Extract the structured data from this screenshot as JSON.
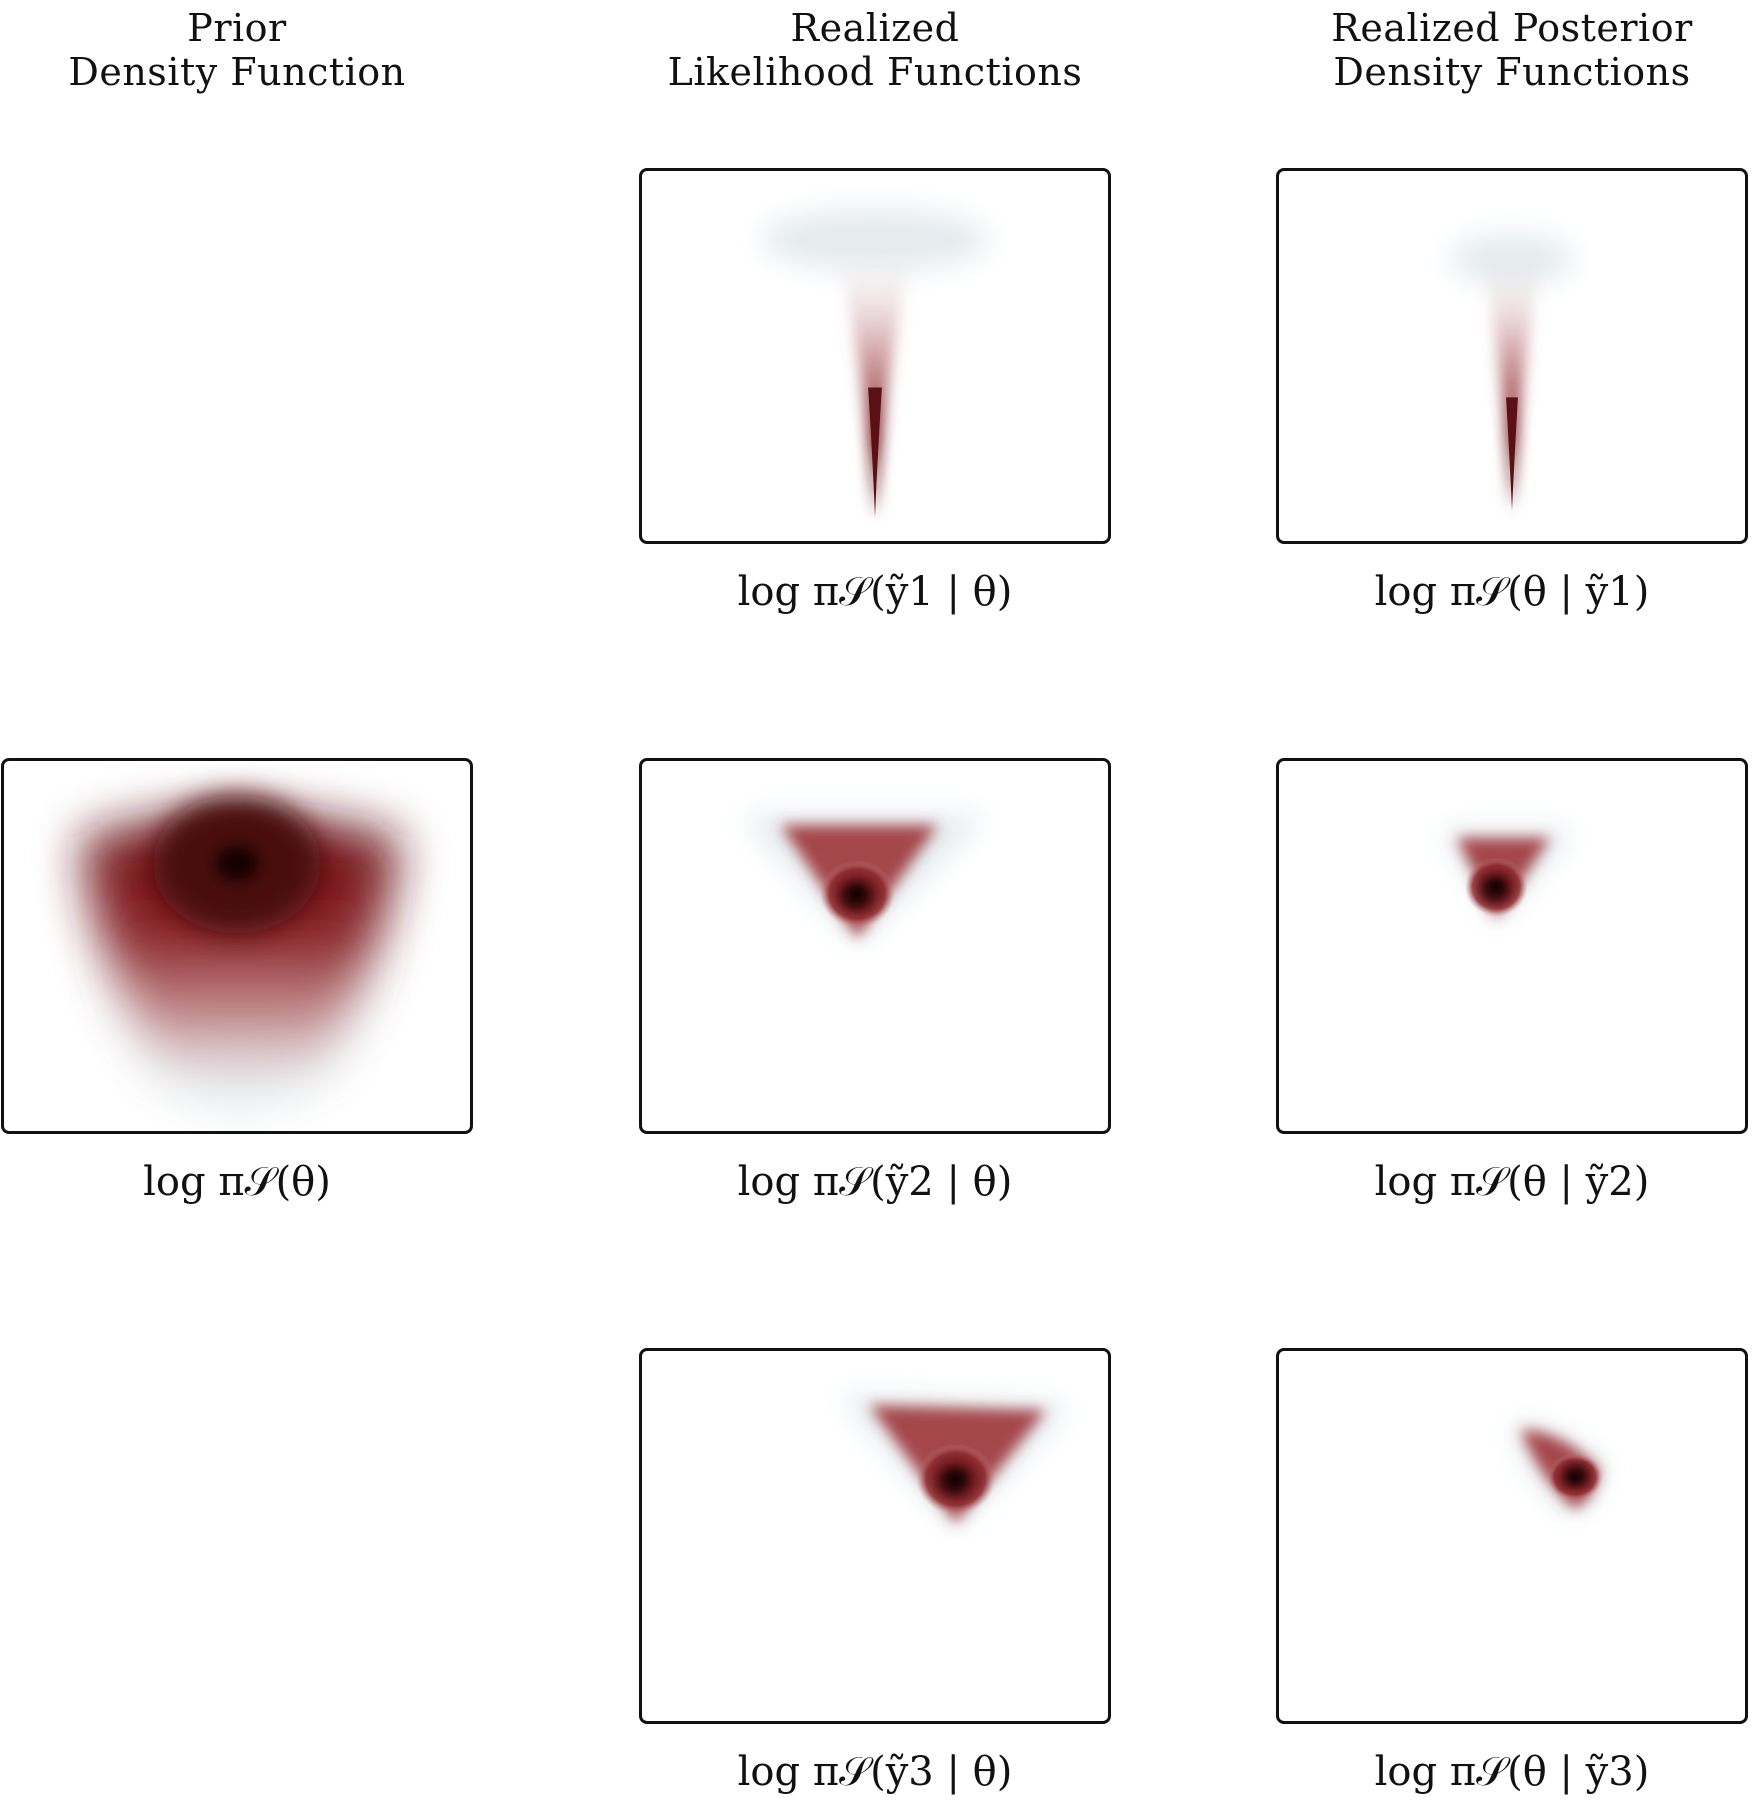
{
  "headers": {
    "prior": [
      "Prior",
      "Density Function"
    ],
    "likelihood": [
      "Realized",
      "Likelihood Functions"
    ],
    "posterior": [
      "Realized Posterior",
      "Density Functions"
    ]
  },
  "captions": {
    "prior": {
      "text": "log π𝒮(θ)"
    },
    "likelihood_1": {
      "text": "log π𝒮(ỹ1 | θ)"
    },
    "likelihood_2": {
      "text": "log π𝒮(ỹ2 | θ)"
    },
    "likelihood_3": {
      "text": "log π𝒮(ỹ3 | θ)"
    },
    "posterior_1": {
      "text": "log π𝒮(θ | ỹ1)"
    },
    "posterior_2": {
      "text": "log π𝒮(θ | ỹ2)"
    },
    "posterior_3": {
      "text": "log π𝒮(θ | ỹ3)"
    }
  },
  "colors": {
    "density_core": "#1a0505",
    "density_mid": "#7a1a1e",
    "density_edge": "#b5666a",
    "density_fade": "#e9eef0",
    "frame": "#111111",
    "background": "#ffffff"
  }
}
